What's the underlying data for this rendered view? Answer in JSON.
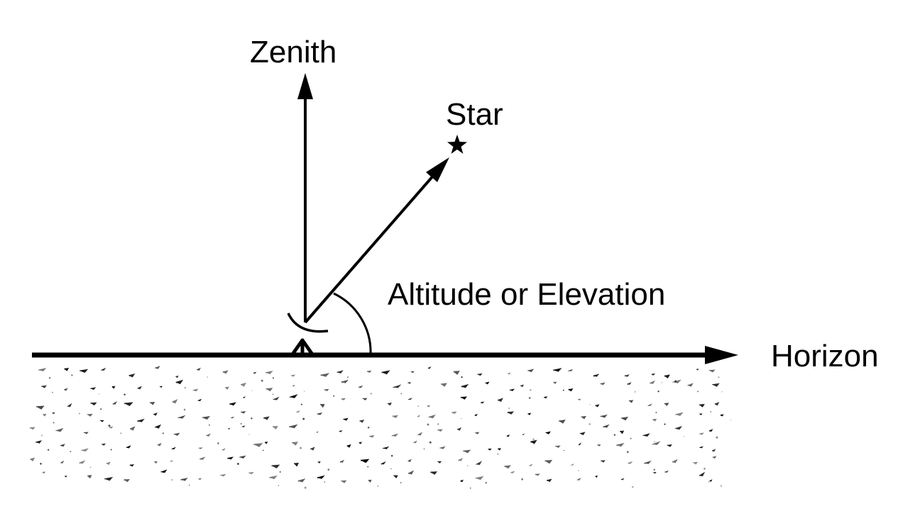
{
  "labels": {
    "zenith": "Zenith",
    "star": "Star",
    "angle": "Altitude or Elevation",
    "horizon": "Horizon"
  },
  "colors": {
    "ink": "#000000",
    "background": "#ffffff"
  }
}
